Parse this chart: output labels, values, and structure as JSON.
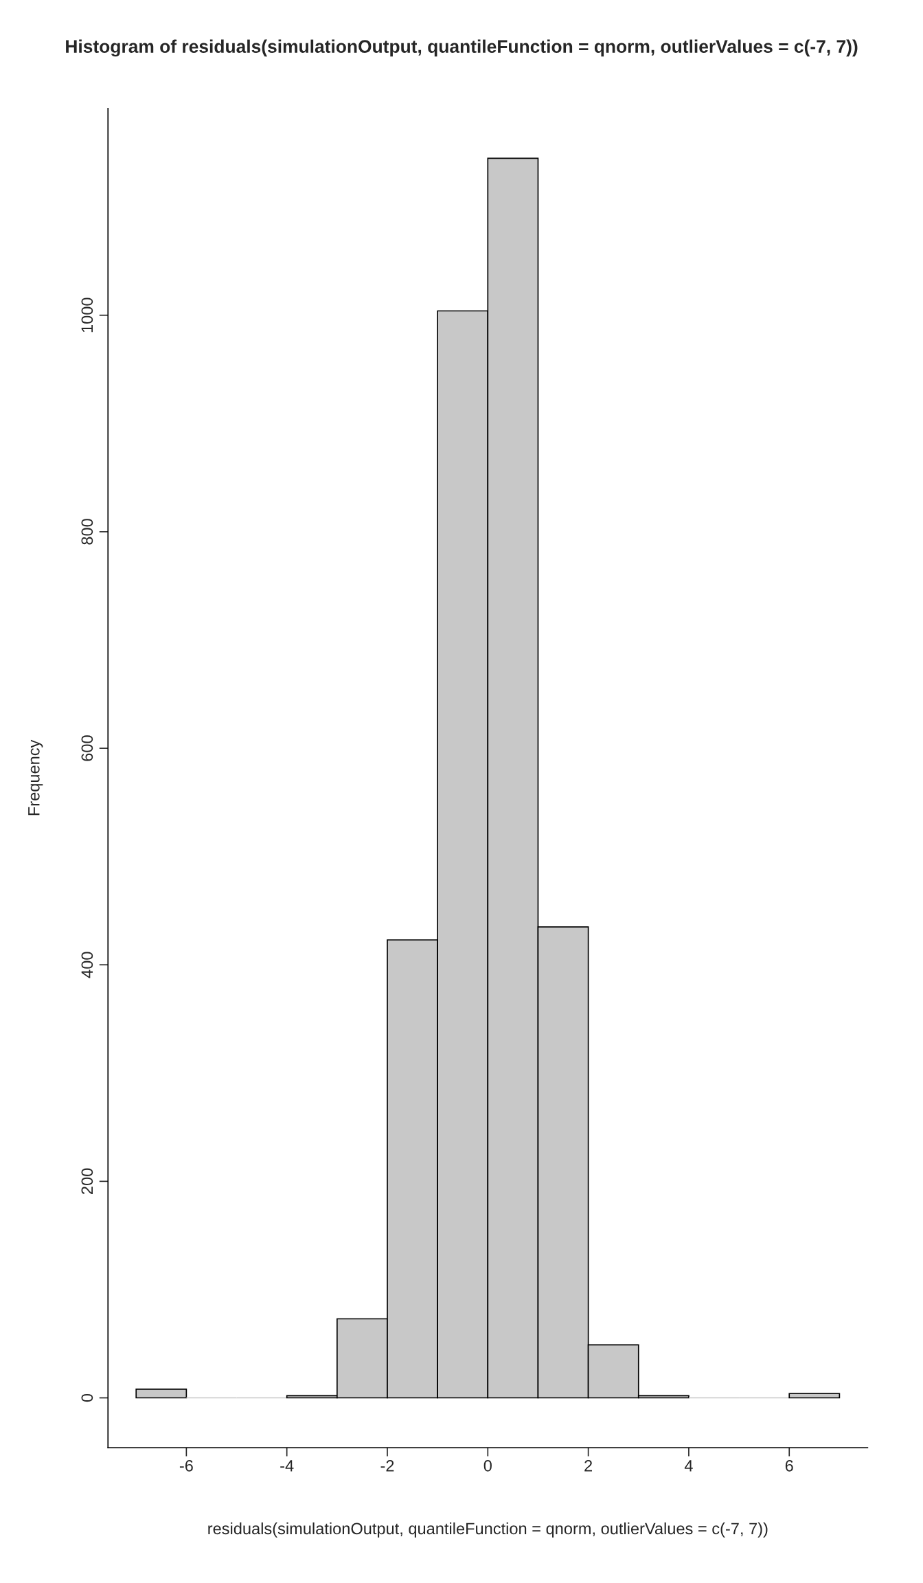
{
  "chart_data": {
    "type": "histogram",
    "title": "Histogram of residuals(simulationOutput, quantileFunction = qnorm, outlierValues = c(-7, 7))",
    "xlabel": "residuals(simulationOutput, quantileFunction = qnorm, outlierValues = c(-7, 7))",
    "ylabel": "Frequency",
    "bins": [
      -7,
      -6,
      -5,
      -4,
      -3,
      -2,
      -1,
      0,
      1,
      2,
      3,
      4,
      5,
      6,
      7
    ],
    "values": [
      8,
      0,
      0,
      2,
      73,
      423,
      1004,
      1145,
      435,
      49,
      2,
      0,
      0,
      4
    ],
    "color": "#c8c8c8",
    "xlim": [
      -7.56,
      7.56
    ],
    "ylim": [
      -46,
      1191
    ],
    "xticks": [
      -6,
      -4,
      -2,
      0,
      2,
      4,
      6
    ],
    "yticks": [
      0,
      200,
      400,
      600,
      800,
      1000
    ]
  }
}
